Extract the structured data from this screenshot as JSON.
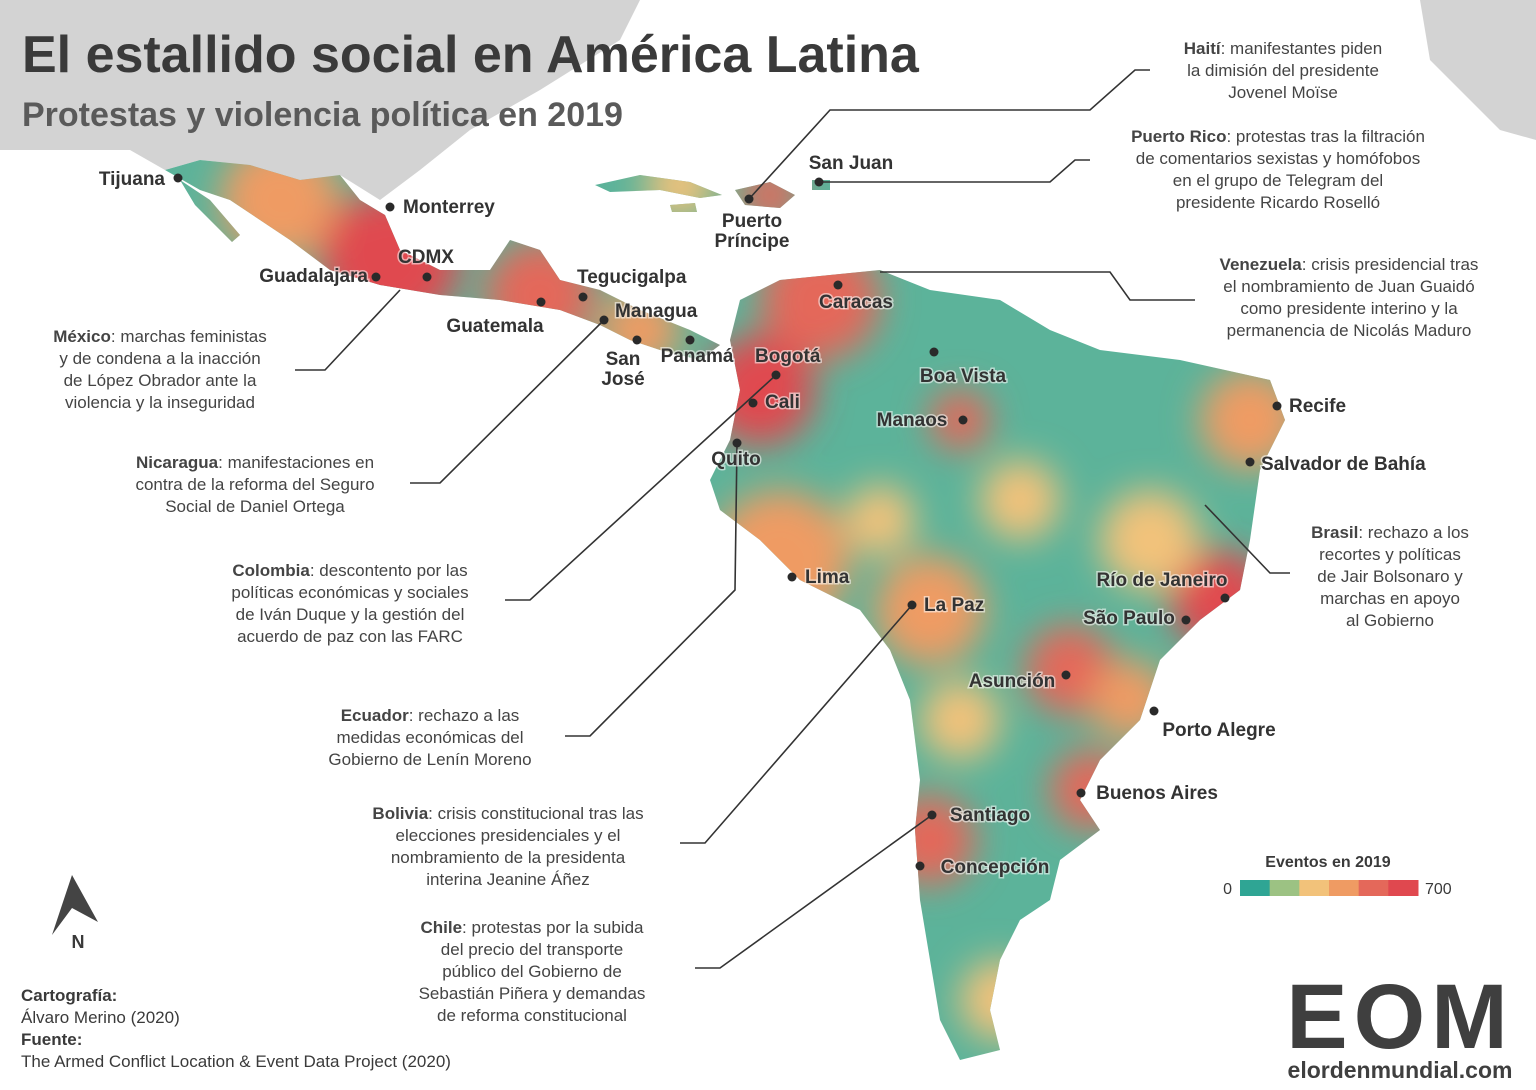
{
  "title": "El estallido social en América Latina",
  "subtitle": "Protestas y violencia política en 2019",
  "cities": [
    {
      "lines": [
        "Tijuana"
      ]
    },
    {
      "lines": [
        "Monterrey"
      ]
    },
    {
      "lines": [
        "CDMX"
      ]
    },
    {
      "lines": [
        "Guadalajara"
      ]
    },
    {
      "lines": [
        "Guatemala"
      ]
    },
    {
      "lines": [
        "Tegucigalpa"
      ]
    },
    {
      "lines": [
        "Managua"
      ]
    },
    {
      "lines": [
        "San",
        "José"
      ]
    },
    {
      "lines": [
        "Panamá"
      ]
    },
    {
      "lines": [
        "Bogotá"
      ]
    },
    {
      "lines": [
        "Cali"
      ]
    },
    {
      "lines": [
        "Quito"
      ]
    },
    {
      "lines": [
        "Caracas"
      ]
    },
    {
      "lines": [
        "Boa Vista"
      ]
    },
    {
      "lines": [
        "Manaos"
      ]
    },
    {
      "lines": [
        "Lima"
      ]
    },
    {
      "lines": [
        "La Paz"
      ]
    },
    {
      "lines": [
        "Recife"
      ]
    },
    {
      "lines": [
        "Salvador de Bahía"
      ]
    },
    {
      "lines": [
        "Río de Janeiro"
      ]
    },
    {
      "lines": [
        "São Paulo"
      ]
    },
    {
      "lines": [
        "Asunción"
      ]
    },
    {
      "lines": [
        "Porto Alegre"
      ]
    },
    {
      "lines": [
        "Buenos Aires"
      ]
    },
    {
      "lines": [
        "Santiago"
      ]
    },
    {
      "lines": [
        "Concepción"
      ]
    },
    {
      "lines": [
        "San Juan"
      ]
    },
    {
      "lines": [
        "Puerto",
        "Príncipe"
      ]
    }
  ],
  "annotations": [
    {
      "country": "Haití",
      "lines": [
        ": manifestantes piden",
        "la dimisión del presidente",
        "Jovenel Moïse"
      ]
    },
    {
      "country": "Puerto Rico",
      "lines": [
        ": protestas tras la filtración",
        "de comentarios sexistas y homófobos",
        "en el grupo de Telegram del",
        "presidente Ricardo Roselló"
      ]
    },
    {
      "country": "Venezuela",
      "lines": [
        ": crisis presidencial tras",
        "el nombramiento de Juan Guaidó",
        "como presidente interino y la",
        "permanencia de Nicolás Maduro"
      ]
    },
    {
      "country": "Brasil",
      "lines": [
        ": rechazo a los",
        "recortes y políticas",
        "de Jair Bolsonaro y",
        "marchas en apoyo",
        "al Gobierno"
      ]
    },
    {
      "country": "México",
      "lines": [
        ": marchas feministas",
        "y de condena a la inacción",
        "de López Obrador ante la",
        "violencia y la inseguridad"
      ]
    },
    {
      "country": "Nicaragua",
      "lines": [
        ": manifestaciones en",
        "contra de la reforma del Seguro",
        "Social de Daniel Ortega"
      ]
    },
    {
      "country": "Colombia",
      "lines": [
        ": descontento por las",
        "políticas económicas y sociales",
        "de Iván Duque y la gestión del",
        "acuerdo de paz con las FARC"
      ]
    },
    {
      "country": "Ecuador",
      "lines": [
        ": rechazo a las",
        "medidas económicas del",
        "Gobierno de Lenín Moreno"
      ]
    },
    {
      "country": "Bolivia",
      "lines": [
        ": crisis constitucional tras las",
        "elecciones presidenciales y el",
        "nombramiento de la presidenta",
        "interina Jeanine Áñez"
      ]
    },
    {
      "country": "Chile",
      "lines": [
        ": protestas por la subida",
        "del precio del transporte",
        "público del Gobierno de",
        "Sebastián Piñera y demandas",
        "de reforma constitucional"
      ]
    }
  ],
  "legend": {
    "title": "Eventos en 2019",
    "min": 0,
    "max": 700,
    "colors": [
      "#2fa594",
      "#9cc283",
      "#f2c27a",
      "#ef9b63",
      "#e4685a",
      "#e0484f"
    ]
  },
  "north": "N",
  "credits": [
    "Cartografía:",
    "Álvaro Merino (2020)",
    "Fuente:",
    "The Armed Conflict Location & Event Data Project (2020)"
  ],
  "logo": {
    "mark": "EOM",
    "url": "elordenmundial.com"
  }
}
